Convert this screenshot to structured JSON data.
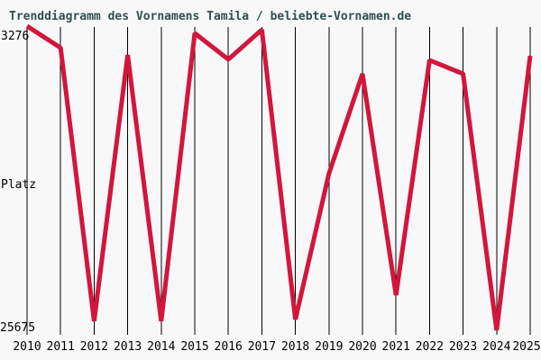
{
  "title": "Trenddiagramm des Vornamens Tamila / beliebte-Vornamen.de",
  "y_axis": {
    "top_label": "3276",
    "mid_label": "Platz",
    "bottom_label": "25675"
  },
  "colors": {
    "background": "#F8F8F8",
    "title_text": "#2F4F4F",
    "axis_text": "#000000",
    "gridline": "#000000",
    "line": "#D2163C"
  },
  "chart_data": {
    "type": "line",
    "title": "Trenddiagramm des Vornamens Tamila / beliebte-Vornamen.de",
    "x": [
      "2010",
      "2011",
      "2012",
      "2013",
      "2014",
      "2015",
      "2016",
      "2017",
      "2018",
      "2019",
      "2020",
      "2021",
      "2022",
      "2023",
      "2024",
      "2025"
    ],
    "series": [
      {
        "name": "Tamila",
        "values": [
          3276,
          4870,
          25000,
          5400,
          25000,
          3800,
          5730,
          3540,
          24880,
          14140,
          6790,
          23090,
          5790,
          6790,
          25675,
          5460
        ]
      }
    ],
    "ylabel": "Platz",
    "ylim": [
      3276,
      25675
    ],
    "y_axis_inverted": true,
    "grid": "vertical",
    "legend": "none"
  }
}
